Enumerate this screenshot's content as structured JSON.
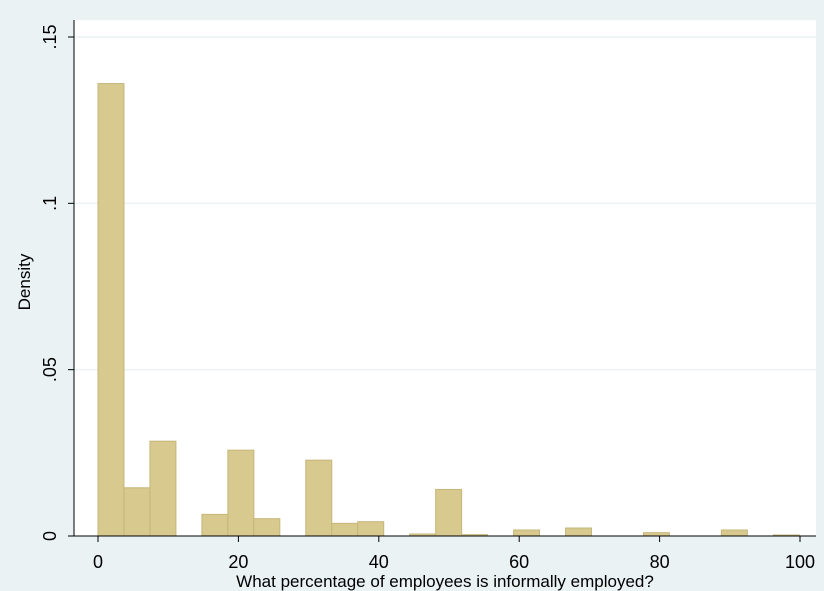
{
  "chart_data": {
    "type": "bar",
    "title": "",
    "xlabel": "What percentage of employees is informally employed?",
    "ylabel": "Density",
    "xlim": [
      0,
      100
    ],
    "ylim": [
      0,
      0.15
    ],
    "bin_width": 3.7,
    "bins": [
      {
        "start": 0.0,
        "value": 0.136
      },
      {
        "start": 3.7,
        "value": 0.0145
      },
      {
        "start": 7.4,
        "value": 0.0285
      },
      {
        "start": 14.8,
        "value": 0.0065
      },
      {
        "start": 18.5,
        "value": 0.0258
      },
      {
        "start": 22.2,
        "value": 0.0052
      },
      {
        "start": 29.6,
        "value": 0.0228
      },
      {
        "start": 33.3,
        "value": 0.0038
      },
      {
        "start": 37.0,
        "value": 0.0043
      },
      {
        "start": 44.4,
        "value": 0.0006
      },
      {
        "start": 48.1,
        "value": 0.014
      },
      {
        "start": 51.8,
        "value": 0.0004
      },
      {
        "start": 59.2,
        "value": 0.0018
      },
      {
        "start": 66.6,
        "value": 0.0024
      },
      {
        "start": 77.7,
        "value": 0.001
      },
      {
        "start": 88.8,
        "value": 0.0018
      },
      {
        "start": 96.2,
        "value": 0.0003
      }
    ],
    "x_ticks": [
      {
        "value": 0,
        "label": "0"
      },
      {
        "value": 20,
        "label": "20"
      },
      {
        "value": 40,
        "label": "40"
      },
      {
        "value": 60,
        "label": "60"
      },
      {
        "value": 80,
        "label": "80"
      },
      {
        "value": 100,
        "label": "100"
      }
    ],
    "y_ticks": [
      {
        "value": 0,
        "label": "0"
      },
      {
        "value": 0.05,
        "label": ".05"
      },
      {
        "value": 0.1,
        "label": ".1"
      },
      {
        "value": 0.15,
        "label": ".15"
      }
    ],
    "grid": true,
    "colors": {
      "bar_fill": "#d8c98e",
      "bar_stroke": "#c5b67a",
      "plot_background": "#ffffff",
      "outer_background": "#eaf2f3",
      "gridline": "#eaf2f3"
    }
  }
}
